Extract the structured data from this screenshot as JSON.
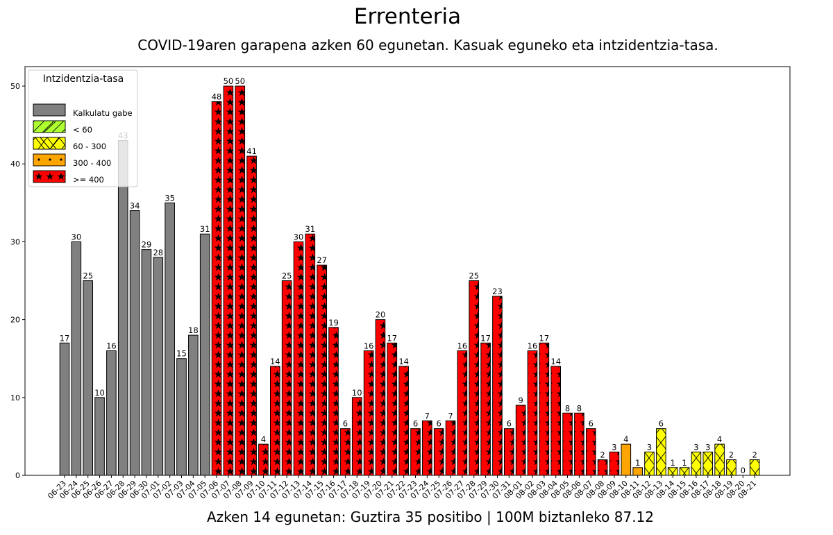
{
  "chart_data": {
    "type": "bar",
    "title": "Errenteria",
    "subtitle": "COVID-19aren garapena azken 60 egunetan. Kasuak eguneko eta intzidentzia-tasa.",
    "footer": "Azken 14 egunetan: Guztira 35 positibo | 100M biztanleko 87.12",
    "ylim": [
      0,
      52.5
    ],
    "yticks": [
      0,
      10,
      20,
      30,
      40,
      50
    ],
    "grid": false,
    "categories": [
      "06-23",
      "06-24",
      "06-25",
      "06-26",
      "06-27",
      "06-28",
      "06-29",
      "06-30",
      "07-01",
      "07-02",
      "07-03",
      "07-04",
      "07-05",
      "07-06",
      "07-07",
      "07-08",
      "07-09",
      "07-10",
      "07-11",
      "07-12",
      "07-13",
      "07-14",
      "07-15",
      "07-16",
      "07-17",
      "07-18",
      "07-19",
      "07-20",
      "07-21",
      "07-22",
      "07-23",
      "07-24",
      "07-25",
      "07-26",
      "07-27",
      "07-28",
      "07-29",
      "07-30",
      "07-31",
      "08-01",
      "08-02",
      "08-03",
      "08-04",
      "08-05",
      "08-06",
      "08-07",
      "08-08",
      "08-09",
      "08-10",
      "08-11",
      "08-12",
      "08-13",
      "08-14",
      "08-15",
      "08-16",
      "08-17",
      "08-18",
      "08-19",
      "08-20",
      "08-21"
    ],
    "values": [
      17,
      30,
      25,
      10,
      16,
      43,
      34,
      29,
      28,
      35,
      15,
      18,
      31,
      48,
      50,
      50,
      41,
      4,
      14,
      25,
      30,
      31,
      27,
      19,
      6,
      10,
      16,
      20,
      17,
      14,
      6,
      7,
      6,
      7,
      16,
      25,
      17,
      23,
      6,
      9,
      16,
      17,
      14,
      8,
      8,
      6,
      2,
      3,
      4,
      1,
      3,
      6,
      1,
      1,
      3,
      3,
      4,
      2,
      0,
      2
    ],
    "incidence_class": [
      "nc",
      "nc",
      "nc",
      "nc",
      "nc",
      "nc",
      "nc",
      "nc",
      "nc",
      "nc",
      "nc",
      "nc",
      "nc",
      "r",
      "r",
      "r",
      "r",
      "r",
      "r",
      "r",
      "r",
      "r",
      "r",
      "r",
      "r",
      "r",
      "r",
      "r",
      "r",
      "r",
      "r",
      "r",
      "r",
      "r",
      "r",
      "r",
      "r",
      "r",
      "r",
      "r",
      "r",
      "r",
      "r",
      "r",
      "r",
      "r",
      "r",
      "r",
      "o",
      "o",
      "y",
      "y",
      "y",
      "y",
      "y",
      "y",
      "y",
      "y",
      "y",
      "y"
    ],
    "legend": {
      "title": "Intzidentzia-tasa",
      "position": "top-left",
      "items": [
        {
          "key": "nc",
          "label": "Kalkulatu gabe",
          "color": "#808080",
          "pattern": "none"
        },
        {
          "key": "g",
          "label": "< 60",
          "color": "#adff2f",
          "pattern": "diagonal"
        },
        {
          "key": "y",
          "label": "60 - 300",
          "color": "#ffff00",
          "pattern": "cross"
        },
        {
          "key": "o",
          "label": "300 - 400",
          "color": "#ffa500",
          "pattern": "dots"
        },
        {
          "key": "r",
          "label": ">= 400",
          "color": "#ff0000",
          "pattern": "stars"
        }
      ]
    }
  }
}
